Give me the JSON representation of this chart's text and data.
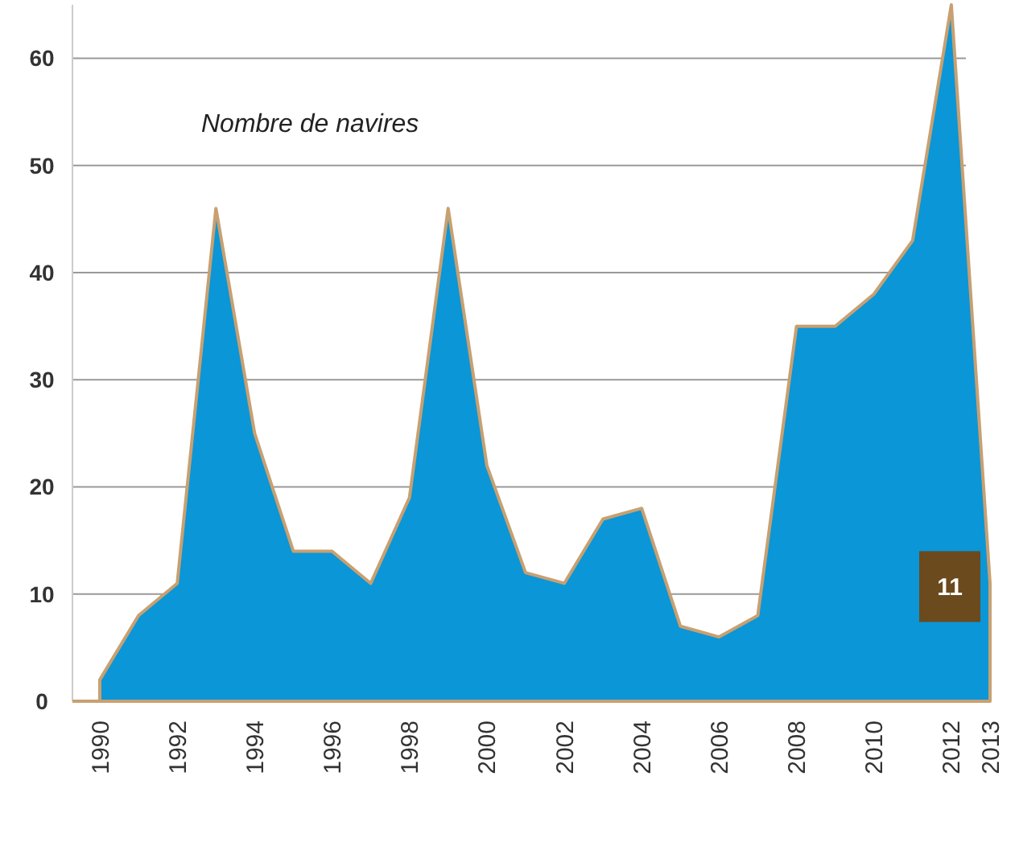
{
  "chart_data": {
    "type": "area",
    "annotations": [
      "Nombre de navires"
    ],
    "categories": [
      "1990",
      null,
      "1992",
      null,
      "1994",
      null,
      "1996",
      null,
      "1998",
      null,
      "2000",
      null,
      "2002",
      null,
      "2004",
      null,
      "2006",
      null,
      "2008",
      null,
      "2010",
      null,
      "2012",
      "2013"
    ],
    "series": [
      {
        "color": "#0a96d7",
        "values": [
          2,
          8,
          11,
          46,
          25,
          14,
          14,
          11,
          19,
          46,
          22,
          12,
          11,
          17,
          18,
          7,
          6,
          8,
          35,
          35,
          38,
          43,
          65,
          11
        ]
      }
    ],
    "value_labels": [
      null,
      null,
      null,
      null,
      null,
      null,
      null,
      null,
      null,
      null,
      null,
      null,
      null,
      null,
      null,
      null,
      null,
      null,
      null,
      null,
      null,
      null,
      null,
      "11"
    ],
    "ylim": [
      0,
      65
    ],
    "yticks": [
      0,
      10,
      20,
      30,
      40,
      50,
      60
    ],
    "grid": "y"
  }
}
